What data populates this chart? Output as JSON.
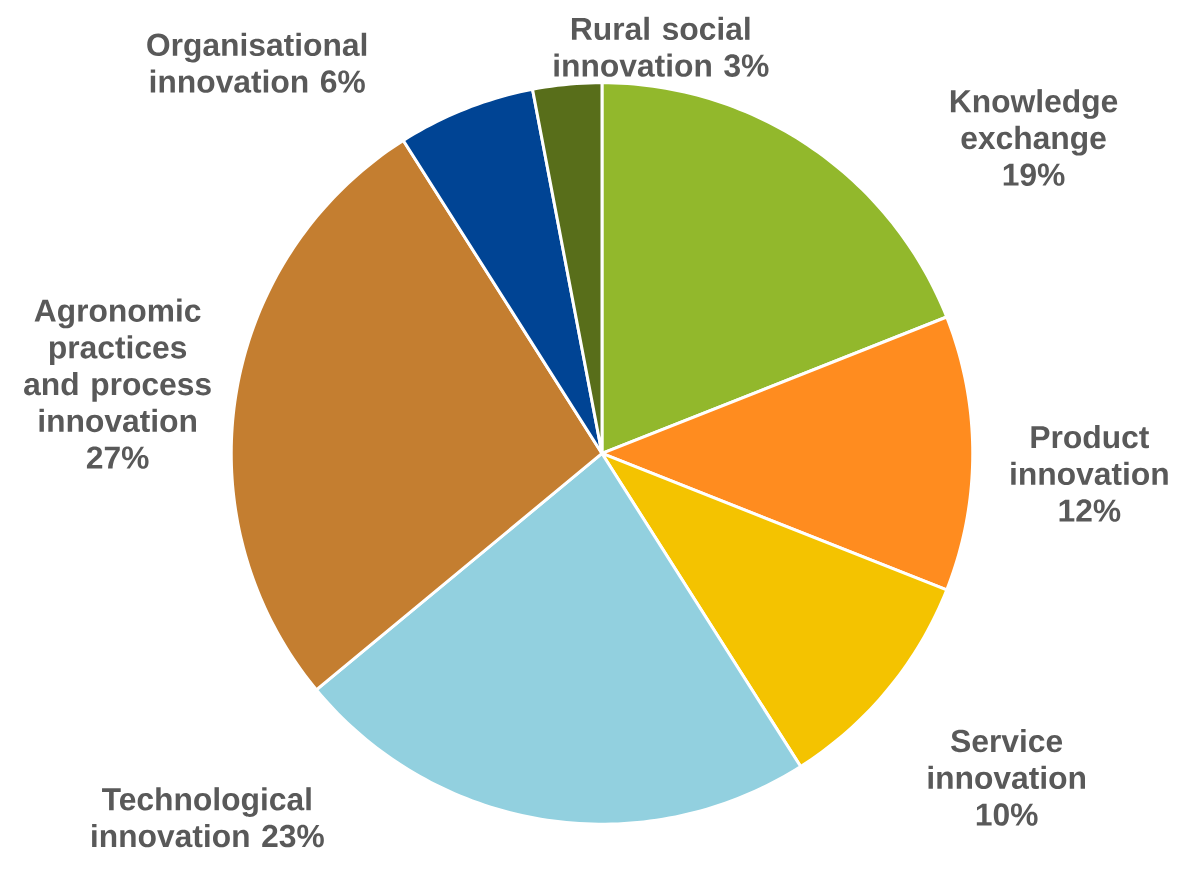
{
  "chart_data": {
    "type": "pie",
    "categories": [
      "Knowledge exchange",
      "Product innovation",
      "Service innovation",
      "Technological innovation",
      "Agronomic practices and process innovation",
      "Organisational innovation",
      "Rural social innovation"
    ],
    "values": [
      19,
      12,
      10,
      23,
      27,
      6,
      3
    ],
    "value_labels": [
      "19%",
      "12%",
      "10%",
      "23%",
      "27%",
      "6%",
      "3%"
    ],
    "colors": [
      "#92b82c",
      "#ff8c1f",
      "#f4c300",
      "#92d0df",
      "#c47e30",
      "#004494",
      "#586e1a"
    ]
  }
}
